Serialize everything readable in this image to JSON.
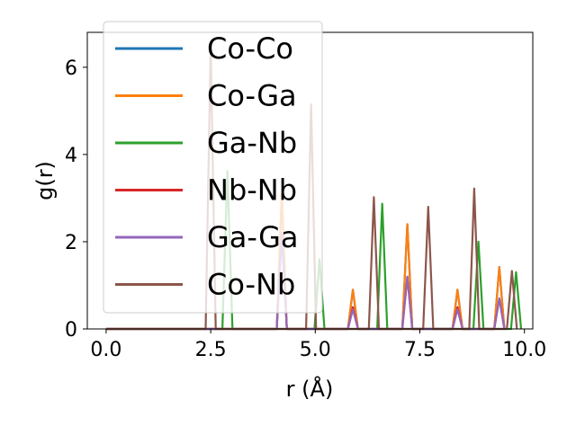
{
  "chart_data": {
    "type": "line",
    "title": "",
    "xlabel": "r (Å)",
    "ylabel": "g(r)",
    "xlim": [
      -0.45,
      10.2
    ],
    "ylim": [
      0,
      6.8
    ],
    "xticks": [
      0.0,
      2.5,
      5.0,
      7.5,
      10.0
    ],
    "xtick_labels": [
      "0.0",
      "2.5",
      "5.0",
      "7.5",
      "10.0"
    ],
    "yticks": [
      0,
      2,
      4,
      6
    ],
    "ytick_labels": [
      "0",
      "2",
      "4",
      "6"
    ],
    "grid": false,
    "legend_position": "upper-left",
    "series": [
      {
        "name": "Co-Co",
        "color": "#1f77b4",
        "peaks": [
          [
            4.2,
            3.1
          ],
          [
            5.9,
            0.9
          ],
          [
            7.2,
            2.4
          ],
          [
            8.4,
            0.9
          ],
          [
            9.4,
            1.42
          ]
        ]
      },
      {
        "name": "Co-Ga",
        "color": "#ff7f0e",
        "peaks": [
          [
            4.2,
            3.1
          ],
          [
            5.9,
            0.9
          ],
          [
            7.2,
            2.4
          ],
          [
            8.4,
            0.9
          ],
          [
            9.4,
            1.42
          ]
        ]
      },
      {
        "name": "Ga-Nb",
        "color": "#2ca02c",
        "peaks": [
          [
            2.9,
            3.62
          ],
          [
            5.1,
            1.6
          ],
          [
            6.6,
            2.87
          ],
          [
            8.9,
            2.0
          ],
          [
            9.8,
            1.3
          ]
        ]
      },
      {
        "name": "Nb-Nb",
        "color": "#d62728",
        "peaks": [
          [
            4.2,
            2.2
          ],
          [
            5.9,
            0.5
          ],
          [
            7.2,
            1.2
          ],
          [
            8.4,
            0.5
          ],
          [
            9.4,
            0.7
          ]
        ]
      },
      {
        "name": "Ga-Ga",
        "color": "#9467bd",
        "peaks": [
          [
            4.2,
            2.2
          ],
          [
            5.9,
            0.45
          ],
          [
            7.2,
            1.2
          ],
          [
            8.4,
            0.45
          ],
          [
            9.4,
            0.7
          ]
        ]
      },
      {
        "name": "Co-Nb",
        "color": "#8c564b",
        "peaks": [
          [
            2.5,
            6.5
          ],
          [
            4.9,
            5.15
          ],
          [
            6.4,
            3.02
          ],
          [
            7.7,
            2.8
          ],
          [
            8.8,
            3.22
          ],
          [
            9.7,
            1.33
          ]
        ]
      }
    ]
  }
}
